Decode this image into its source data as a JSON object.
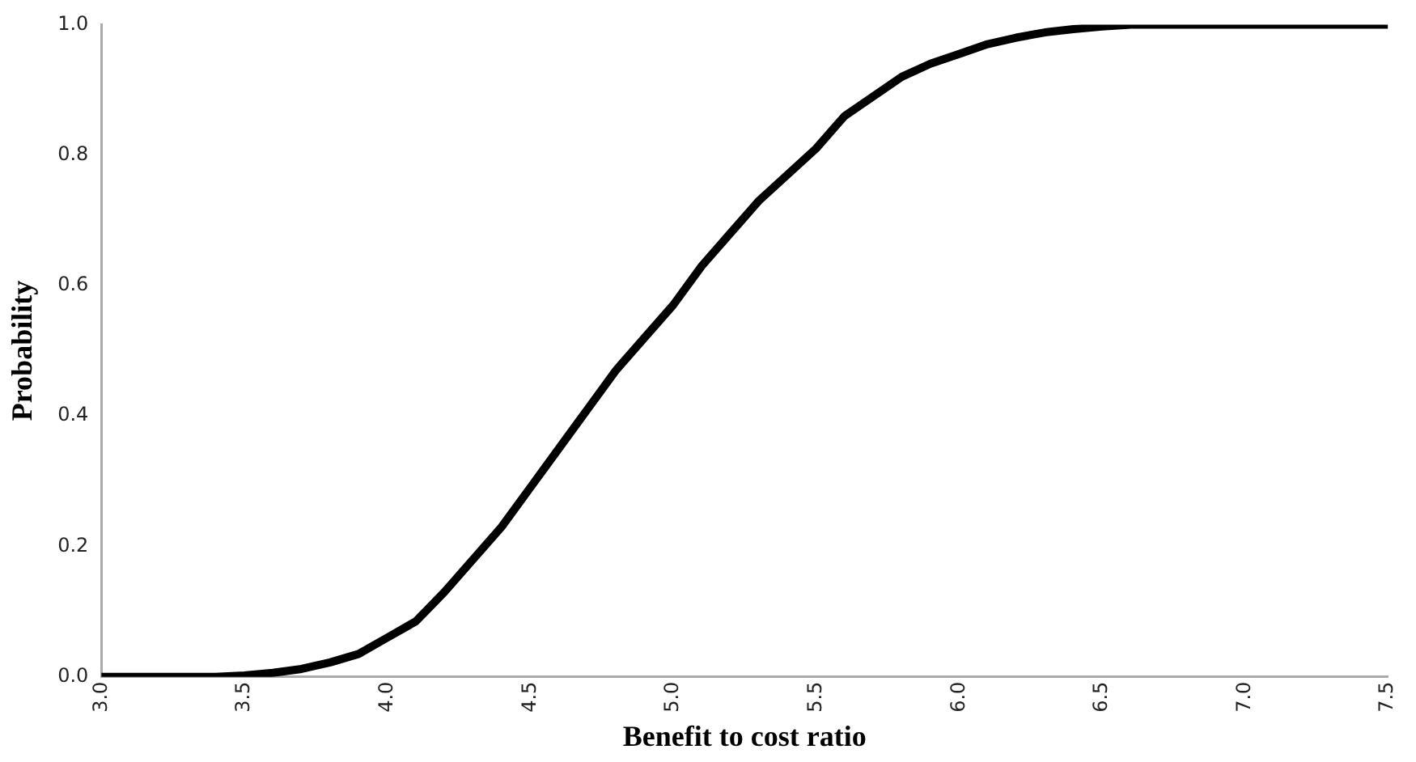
{
  "chart_data": {
    "type": "line",
    "xlabel": "Benefit to cost ratio",
    "ylabel": "Probability",
    "x": [
      3.0,
      3.4,
      3.5,
      3.6,
      3.7,
      3.8,
      3.9,
      4.0,
      4.1,
      4.2,
      4.3,
      4.4,
      4.5,
      4.6,
      4.7,
      4.8,
      4.9,
      5.0,
      5.1,
      5.2,
      5.3,
      5.4,
      5.5,
      5.6,
      5.7,
      5.8,
      5.9,
      6.0,
      6.1,
      6.2,
      6.3,
      6.4,
      6.5,
      6.6,
      7.0,
      7.5
    ],
    "series": [
      {
        "color": "#000000",
        "values": [
          0,
          0,
          0.002,
          0.006,
          0.012,
          0.022,
          0.035,
          0.06,
          0.085,
          0.13,
          0.18,
          0.23,
          0.29,
          0.35,
          0.41,
          0.47,
          0.52,
          0.57,
          0.63,
          0.68,
          0.73,
          0.77,
          0.81,
          0.86,
          0.89,
          0.92,
          0.94,
          0.955,
          0.97,
          0.98,
          0.988,
          0.993,
          0.997,
          1.0,
          1.0,
          1.0
        ]
      }
    ],
    "xlim": [
      3.0,
      7.5
    ],
    "xticks": [
      {
        "value": 3,
        "label": "3.0"
      },
      3.5,
      {
        "value": 4,
        "label": "4.0"
      },
      4.5,
      {
        "value": 5,
        "label": "5.0"
      },
      5.5,
      {
        "value": 6,
        "label": "6.0"
      },
      6.5,
      {
        "value": 7,
        "label": "7.0"
      },
      7.5
    ],
    "ylim": [
      0,
      1.0
    ],
    "yticks": [
      {
        "value": 0,
        "label": "0.0"
      },
      0.2,
      0.4,
      0.6,
      0.8,
      {
        "value": 1,
        "label": "1.0"
      }
    ],
    "grid": false,
    "legend": false,
    "marker": "none",
    "line_style": "solid"
  }
}
